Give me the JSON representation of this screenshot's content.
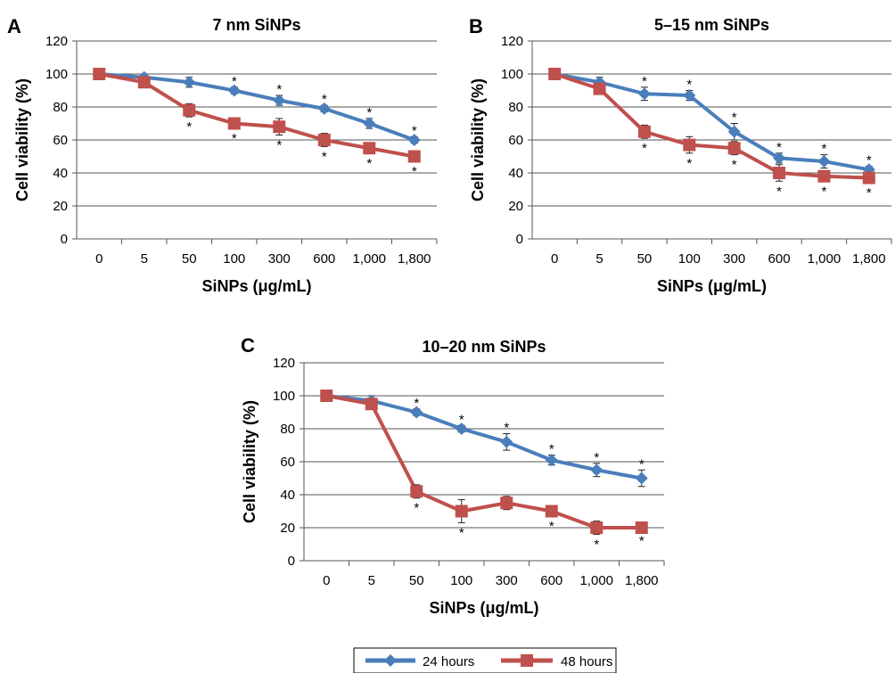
{
  "legend": {
    "items": [
      {
        "label": "24 hours",
        "color": "#4a7ebb",
        "marker": "diamond"
      },
      {
        "label": "48 hours",
        "color": "#c0504d",
        "marker": "square"
      }
    ]
  },
  "chart_data": [
    {
      "type": "line",
      "panel": "A",
      "title": "7 nm SiNPs",
      "xlabel": "SiNPs (μg/mL)",
      "ylabel": "Cell viability (%)",
      "ylim": [
        0,
        120
      ],
      "yticks": [
        "0",
        "20",
        "40",
        "60",
        "80",
        "100",
        "120"
      ],
      "categories": [
        "0",
        "5",
        "50",
        "100",
        "300",
        "600",
        "1,000",
        "1,800"
      ],
      "grid": "horizontal",
      "series": [
        {
          "name": "24 hours",
          "values": [
            100,
            98,
            95,
            90,
            84,
            79,
            70,
            60
          ],
          "errors": [
            1,
            2,
            3,
            2,
            3,
            2,
            3,
            2
          ],
          "significance": [
            false,
            false,
            false,
            true,
            true,
            true,
            true,
            true
          ],
          "sig_pos": "above"
        },
        {
          "name": "48 hours",
          "values": [
            100,
            95,
            78,
            70,
            68,
            60,
            55,
            50
          ],
          "errors": [
            1,
            3,
            4,
            3,
            5,
            4,
            3,
            3
          ],
          "significance": [
            false,
            false,
            true,
            true,
            true,
            true,
            true,
            true
          ],
          "sig_pos": "below"
        }
      ]
    },
    {
      "type": "line",
      "panel": "B",
      "title": "5–15 nm SiNPs",
      "xlabel": "SiNPs (μg/mL)",
      "ylabel": "Cell viability (%)",
      "ylim": [
        0,
        120
      ],
      "yticks": [
        "0",
        "20",
        "40",
        "60",
        "80",
        "100",
        "120"
      ],
      "categories": [
        "0",
        "5",
        "50",
        "100",
        "300",
        "600",
        "1,000",
        "1,800"
      ],
      "grid": "horizontal",
      "series": [
        {
          "name": "24 hours",
          "values": [
            100,
            95,
            88,
            87,
            65,
            49,
            47,
            42
          ],
          "errors": [
            1,
            3,
            4,
            3,
            5,
            3,
            4,
            2
          ],
          "significance": [
            false,
            false,
            true,
            true,
            true,
            true,
            true,
            true
          ],
          "sig_pos": "above"
        },
        {
          "name": "48 hours",
          "values": [
            100,
            91,
            65,
            57,
            55,
            40,
            38,
            37
          ],
          "errors": [
            1,
            3,
            4,
            5,
            4,
            5,
            3,
            3
          ],
          "significance": [
            false,
            false,
            true,
            true,
            true,
            true,
            true,
            true
          ],
          "sig_pos": "below"
        }
      ]
    },
    {
      "type": "line",
      "panel": "C",
      "title": "10–20 nm SiNPs",
      "xlabel": "SiNPs (μg/mL)",
      "ylabel": "Cell viability (%)",
      "ylim": [
        0,
        120
      ],
      "yticks": [
        "0",
        "20",
        "40",
        "60",
        "80",
        "100",
        "120"
      ],
      "categories": [
        "0",
        "5",
        "50",
        "100",
        "300",
        "600",
        "1,000",
        "1,800"
      ],
      "grid": "horizontal",
      "series": [
        {
          "name": "24 hours",
          "values": [
            100,
            97,
            90,
            80,
            72,
            61,
            55,
            50
          ],
          "errors": [
            1,
            3,
            2,
            2,
            5,
            3,
            4,
            5
          ],
          "significance": [
            false,
            false,
            true,
            true,
            true,
            true,
            true,
            true
          ],
          "sig_pos": "above"
        },
        {
          "name": "48 hours",
          "values": [
            100,
            95,
            42,
            30,
            35,
            30,
            20,
            20
          ],
          "errors": [
            1,
            2,
            4,
            7,
            4,
            3,
            4,
            2
          ],
          "significance": [
            false,
            false,
            true,
            true,
            false,
            true,
            true,
            true
          ],
          "sig_pos": "below"
        }
      ]
    }
  ]
}
